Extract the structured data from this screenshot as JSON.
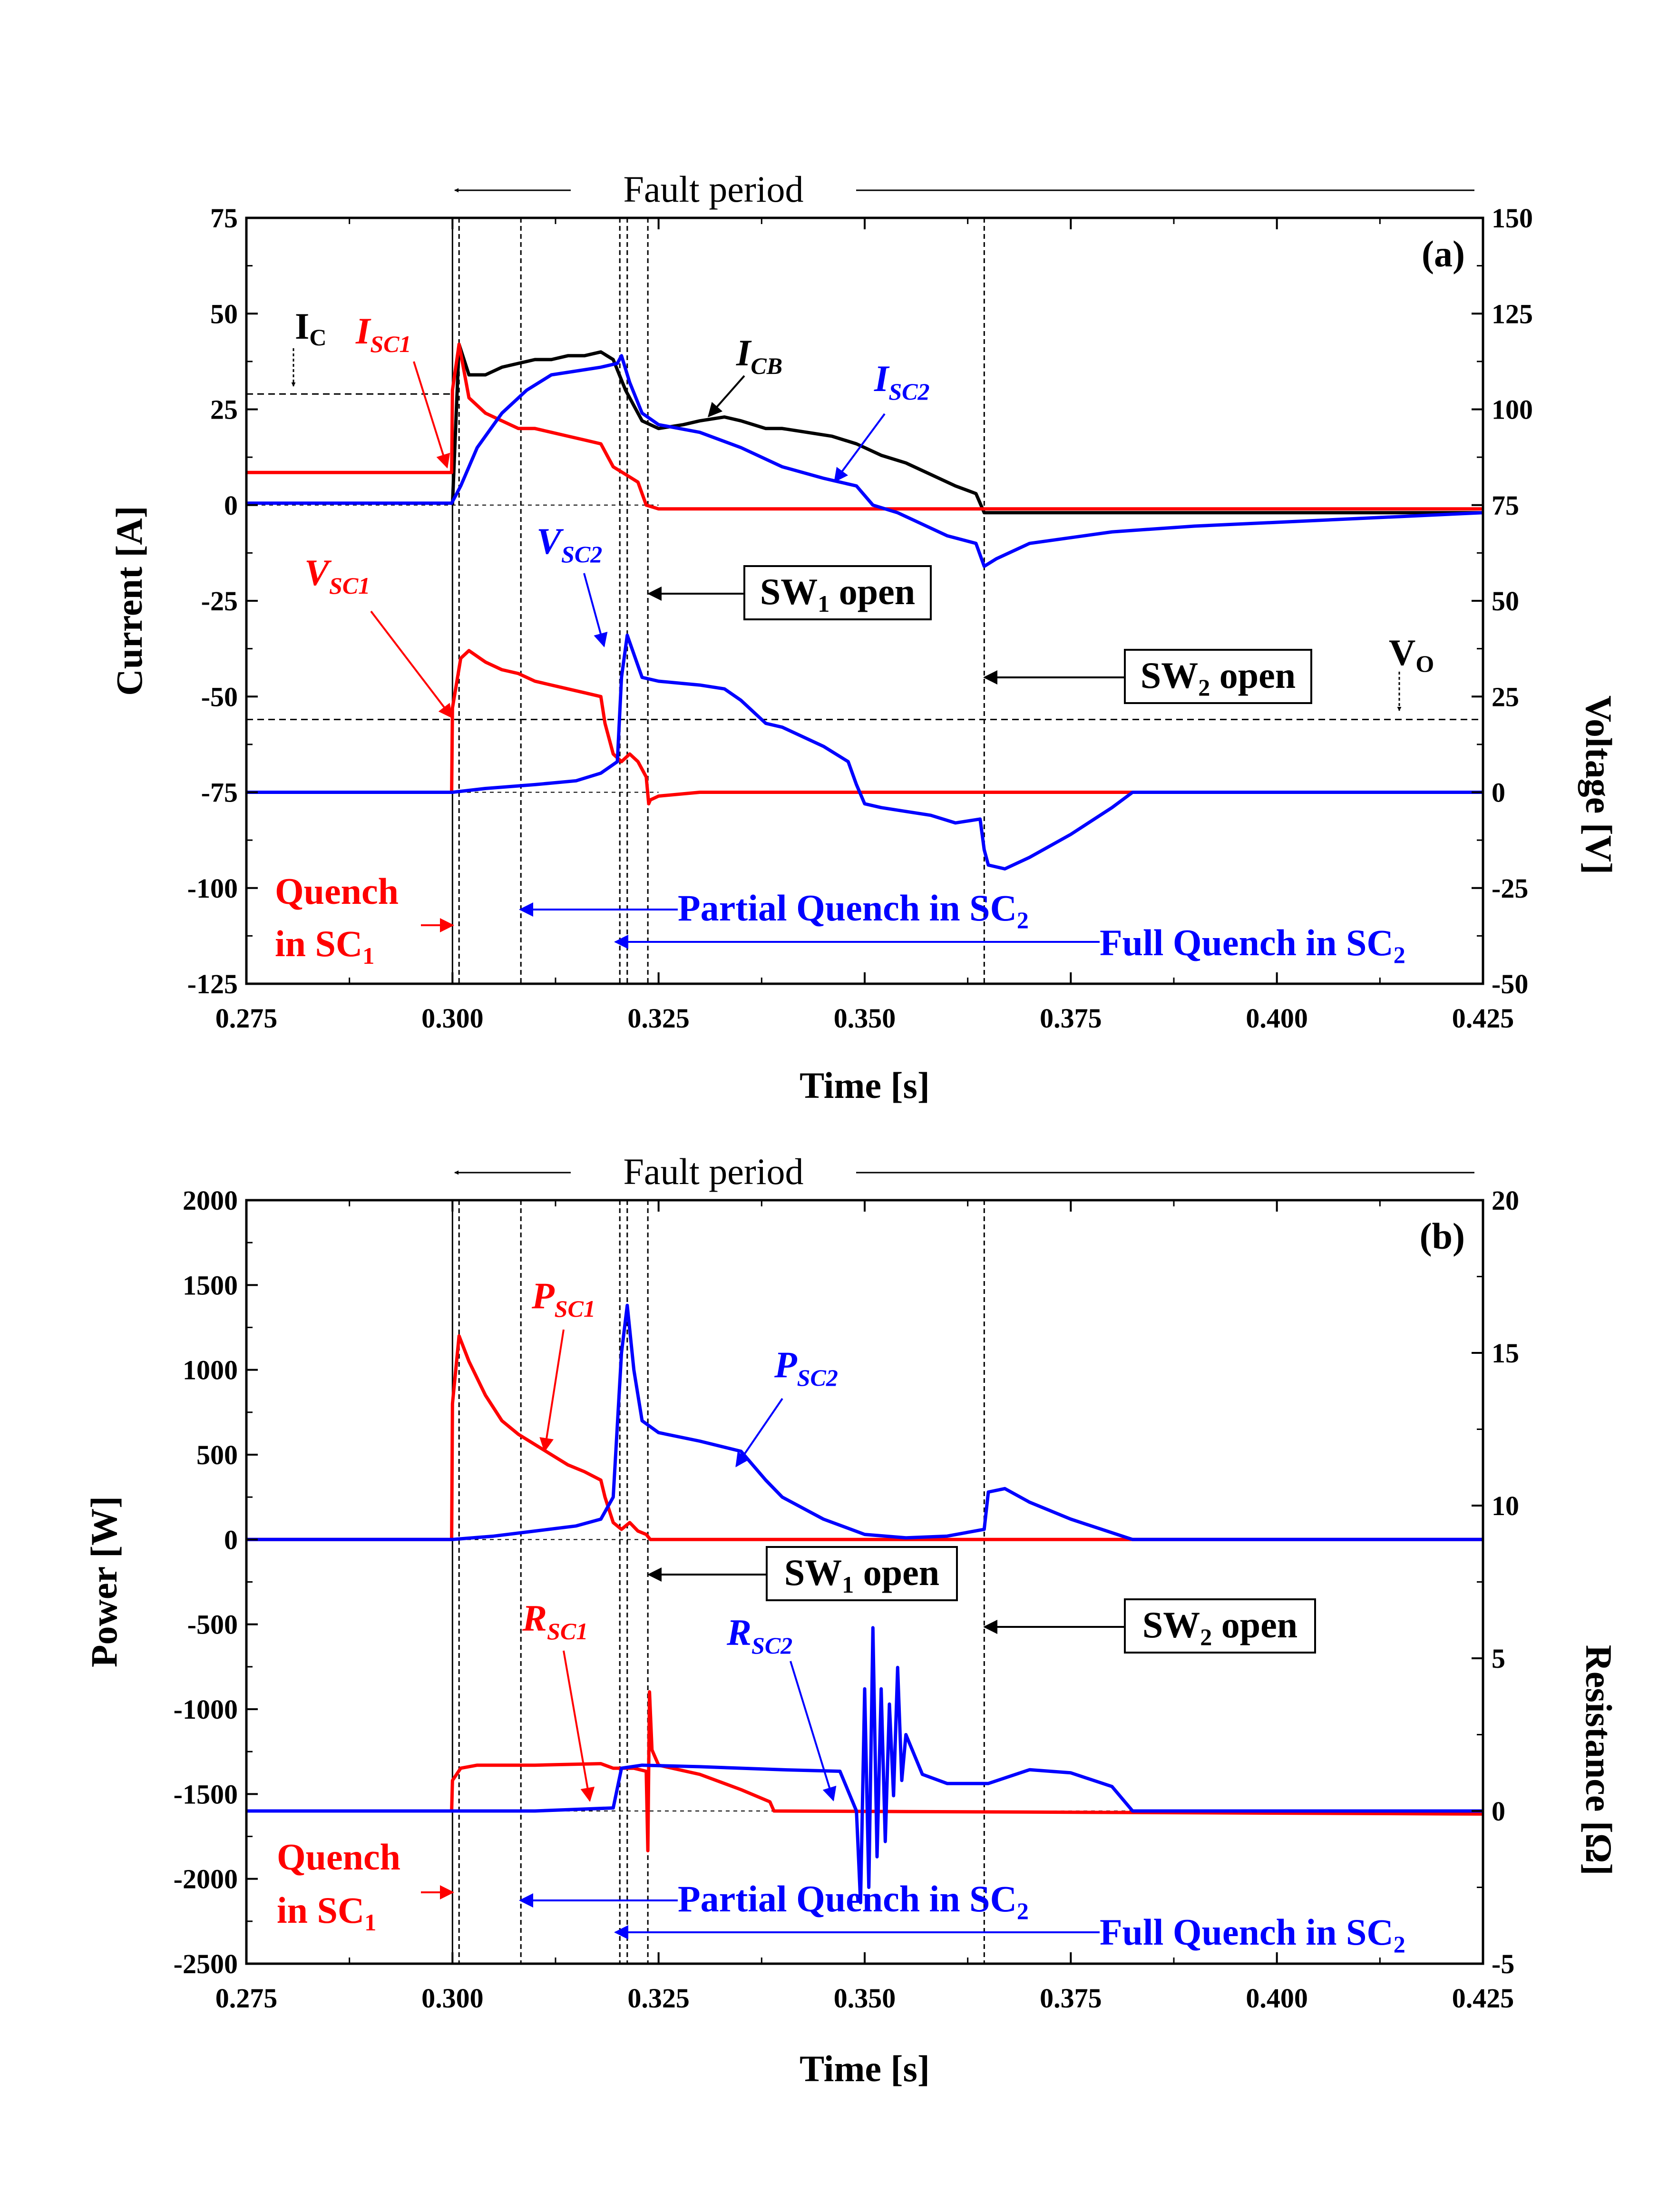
{
  "colors": {
    "current_cb": "#000000",
    "sc1": "#ff0000",
    "sc2": "#0000ff",
    "dashed": "#000000"
  },
  "chart_data": [
    {
      "type": "line",
      "panel_label": "(a)",
      "xlabel": "Time [s]",
      "ylabel_left": "Current [A]",
      "ylabel_right": "Voltage [V]",
      "xlim": [
        0.275,
        0.425
      ],
      "ylim_left": [
        -125,
        75
      ],
      "ylim_right": [
        -50,
        150
      ],
      "x_ticks": [
        "0.275",
        "0.300",
        "0.325",
        "0.350",
        "0.375",
        "0.400",
        "0.425"
      ],
      "y_ticks_left": [
        "75",
        "50",
        "25",
        "0",
        "-25",
        "-50",
        "-75",
        "-100",
        "-125"
      ],
      "y_ticks_right": [
        "150",
        "125",
        "100",
        "75",
        "50",
        "25",
        "0",
        "-25",
        "-50"
      ],
      "series": [
        {
          "name": "ICB",
          "color": "#000000",
          "axis": "left",
          "x": [
            0.3,
            0.3008,
            0.302,
            0.304,
            0.306,
            0.308,
            0.31,
            0.312,
            0.314,
            0.316,
            0.318,
            0.3195,
            0.321,
            0.323,
            0.325,
            0.328,
            0.33,
            0.333,
            0.335,
            0.338,
            0.34,
            0.343,
            0.346,
            0.349,
            0.352,
            0.355,
            0.358,
            0.361,
            0.3635,
            0.3645,
            0.37,
            0.38,
            0.425
          ],
          "y": [
            0,
            42,
            34,
            34,
            36,
            37,
            38,
            38,
            39,
            39,
            40,
            38,
            30,
            22,
            20,
            21,
            22,
            23,
            22,
            20,
            20,
            19,
            18,
            16,
            13,
            11,
            8,
            5,
            3,
            -2,
            -2,
            -2,
            -2
          ]
        },
        {
          "name": "ISC1",
          "color": "#ff0000",
          "axis": "left",
          "x": [
            0.275,
            0.2999,
            0.3,
            0.3008,
            0.302,
            0.304,
            0.306,
            0.308,
            0.31,
            0.312,
            0.314,
            0.316,
            0.318,
            0.3195,
            0.321,
            0.3225,
            0.3235,
            0.325,
            0.425
          ],
          "y": [
            8.5,
            8.5,
            30,
            42,
            28,
            24,
            22,
            20,
            20,
            19,
            18,
            17,
            16,
            10,
            8,
            6,
            0,
            -1,
            -1
          ]
        },
        {
          "name": "ISC2",
          "color": "#0000ff",
          "axis": "left",
          "x": [
            0.275,
            0.2999,
            0.301,
            0.303,
            0.306,
            0.309,
            0.312,
            0.315,
            0.318,
            0.32,
            0.3205,
            0.3215,
            0.323,
            0.325,
            0.33,
            0.335,
            0.34,
            0.345,
            0.349,
            0.351,
            0.354,
            0.357,
            0.36,
            0.3635,
            0.3645,
            0.366,
            0.37,
            0.38,
            0.39,
            0.4,
            0.41,
            0.425
          ],
          "y": [
            0.5,
            0.5,
            5,
            15,
            24,
            30,
            34,
            35,
            36,
            37,
            39,
            32,
            24,
            21,
            19,
            15,
            10,
            7,
            5,
            0,
            -2,
            -5,
            -8,
            -10,
            -16,
            -14,
            -10,
            -7,
            -5.5,
            -4.5,
            -3.5,
            -2
          ]
        },
        {
          "name": "VSC1",
          "color": "#ff0000",
          "axis": "right",
          "x": [
            0.275,
            0.2999,
            0.3,
            0.301,
            0.302,
            0.304,
            0.306,
            0.308,
            0.31,
            0.312,
            0.314,
            0.316,
            0.318,
            0.3185,
            0.3195,
            0.3205,
            0.3215,
            0.3225,
            0.3235,
            0.3238,
            0.324,
            0.325,
            0.33,
            0.425
          ],
          "y": [
            0,
            0,
            22,
            35,
            37,
            34,
            32,
            31,
            29,
            28,
            27,
            26,
            25,
            18,
            10,
            8,
            10,
            8,
            4,
            -3,
            -2,
            -1,
            0,
            0
          ]
        },
        {
          "name": "VSC2",
          "color": "#0000ff",
          "axis": "right",
          "x": [
            0.275,
            0.3,
            0.304,
            0.31,
            0.315,
            0.318,
            0.32,
            0.3205,
            0.3212,
            0.323,
            0.325,
            0.33,
            0.333,
            0.335,
            0.338,
            0.34,
            0.345,
            0.348,
            0.349,
            0.35,
            0.352,
            0.355,
            0.358,
            0.361,
            0.364,
            0.3645,
            0.365,
            0.367,
            0.37,
            0.375,
            0.38,
            0.3825,
            0.425
          ],
          "y": [
            0,
            0,
            1,
            2,
            3,
            5,
            8,
            30,
            41,
            30,
            29,
            28,
            27,
            24,
            18,
            17,
            12,
            8,
            2,
            -3,
            -4,
            -5,
            -6,
            -8,
            -7,
            -15,
            -19,
            -20,
            -17,
            -11,
            -4,
            0,
            0
          ]
        }
      ],
      "reference_lines": {
        "Ic_A": 29,
        "Vo_V": 19
      }
    },
    {
      "type": "line",
      "panel_label": "(b)",
      "xlabel": "Time [s]",
      "ylabel_left": "Power [W]",
      "ylabel_right": "Resistance [Ω]",
      "xlim": [
        0.275,
        0.425
      ],
      "ylim_left": [
        -2500,
        2000
      ],
      "ylim_right": [
        -5,
        20
      ],
      "x_ticks": [
        "0.275",
        "0.300",
        "0.325",
        "0.350",
        "0.375",
        "0.400",
        "0.425"
      ],
      "y_ticks_left": [
        "2000",
        "1500",
        "1000",
        "500",
        "0",
        "-500",
        "-1000",
        "-1500",
        "-2000",
        "-2500"
      ],
      "y_ticks_right": [
        "20",
        "15",
        "10",
        "5",
        "0",
        "-5"
      ],
      "series": [
        {
          "name": "PSC1",
          "color": "#ff0000",
          "axis": "left",
          "x": [
            0.275,
            0.2999,
            0.3,
            0.3008,
            0.302,
            0.304,
            0.306,
            0.308,
            0.31,
            0.312,
            0.314,
            0.316,
            0.318,
            0.3185,
            0.3195,
            0.3205,
            0.3215,
            0.3225,
            0.3235,
            0.324,
            0.425
          ],
          "y": [
            0,
            0,
            800,
            1200,
            1050,
            850,
            700,
            620,
            560,
            500,
            440,
            400,
            350,
            250,
            100,
            60,
            100,
            50,
            30,
            0,
            0
          ]
        },
        {
          "name": "PSC2",
          "color": "#0000ff",
          "axis": "left",
          "x": [
            0.275,
            0.3,
            0.305,
            0.31,
            0.315,
            0.318,
            0.3195,
            0.3205,
            0.3212,
            0.322,
            0.323,
            0.325,
            0.33,
            0.335,
            0.338,
            0.34,
            0.345,
            0.35,
            0.355,
            0.36,
            0.3645,
            0.365,
            0.367,
            0.37,
            0.375,
            0.38,
            0.3825,
            0.425
          ],
          "y": [
            0,
            0,
            20,
            50,
            80,
            120,
            250,
            1100,
            1380,
            1000,
            700,
            630,
            580,
            520,
            350,
            250,
            120,
            30,
            10,
            20,
            60,
            280,
            300,
            220,
            120,
            40,
            0,
            0
          ]
        },
        {
          "name": "RSC1",
          "color": "#ff0000",
          "axis": "right",
          "x": [
            0.275,
            0.2999,
            0.3,
            0.301,
            0.303,
            0.31,
            0.318,
            0.3195,
            0.322,
            0.3235,
            0.3237,
            0.3239,
            0.3242,
            0.325,
            0.33,
            0.335,
            0.3385,
            0.339,
            0.425
          ],
          "y": [
            0,
            0,
            1.0,
            1.4,
            1.5,
            1.5,
            1.55,
            1.4,
            1.4,
            1.3,
            -1.3,
            3.9,
            2.0,
            1.5,
            1.2,
            0.7,
            0.3,
            0,
            -0.1
          ]
        },
        {
          "name": "RSC2",
          "color": "#0000ff",
          "axis": "right",
          "x": [
            0.275,
            0.3,
            0.31,
            0.3195,
            0.3205,
            0.323,
            0.33,
            0.34,
            0.347,
            0.349,
            0.3495,
            0.35,
            0.3505,
            0.351,
            0.3515,
            0.352,
            0.3525,
            0.353,
            0.3535,
            0.354,
            0.3545,
            0.355,
            0.357,
            0.36,
            0.365,
            0.37,
            0.375,
            0.38,
            0.3825,
            0.425
          ],
          "y": [
            0,
            0,
            0,
            0.1,
            1.4,
            1.5,
            1.45,
            1.35,
            1.3,
            0,
            -3,
            4,
            -2.5,
            6,
            -1.5,
            4,
            -1,
            3.5,
            0.5,
            4.7,
            1.0,
            2.5,
            1.2,
            0.9,
            0.9,
            1.35,
            1.25,
            0.8,
            0,
            0
          ]
        }
      ]
    }
  ],
  "panels": [
    {
      "label": "(a)",
      "fault_period": "Fault period",
      "ic_label": "I",
      "ic_sub": "C",
      "vo_label": "V",
      "vo_sub": "O",
      "sw1": {
        "main": "SW",
        "sub": "1",
        "tail": " open"
      },
      "sw2": {
        "main": "SW",
        "sub": "2",
        "tail": " open"
      },
      "curve_labels": {
        "isc1": {
          "main": "I",
          "sub": "SC1"
        },
        "icb": {
          "main": "I",
          "sub": "CB"
        },
        "isc2": {
          "main": "I",
          "sub": "SC2"
        },
        "vsc1": {
          "main": "V",
          "sub": "SC1"
        },
        "vsc2": {
          "main": "V",
          "sub": "SC2"
        }
      },
      "quench_sc1_line1": "Quench",
      "quench_sc1_line2": "in SC",
      "quench_sc1_sub": "1",
      "partial_quench": "Partial Quench in SC",
      "partial_quench_sub": "2",
      "full_quench": "Full Quench in SC",
      "full_quench_sub": "2"
    },
    {
      "label": "(b)",
      "fault_period": "Fault period",
      "sw1": {
        "main": "SW",
        "sub": "1",
        "tail": " open"
      },
      "sw2": {
        "main": "SW",
        "sub": "2",
        "tail": " open"
      },
      "curve_labels": {
        "psc1": {
          "main": "P",
          "sub": "SC1"
        },
        "psc2": {
          "main": "P",
          "sub": "SC2"
        },
        "rsc1": {
          "main": "R",
          "sub": "SC1"
        },
        "rsc2": {
          "main": "R",
          "sub": "SC2"
        }
      },
      "quench_sc1_line1": "Quench",
      "quench_sc1_line2": "in SC",
      "quench_sc1_sub": "1",
      "partial_quench": "Partial Quench in SC",
      "partial_quench_sub": "2",
      "full_quench": "Full Quench in SC",
      "full_quench_sub": "2"
    }
  ]
}
